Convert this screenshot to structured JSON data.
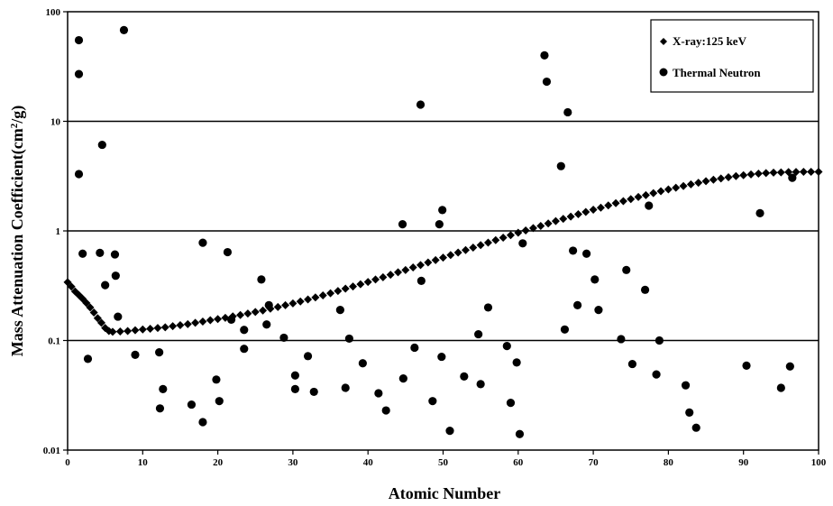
{
  "chart_data": {
    "type": "scatter",
    "xlabel": "Atomic Number",
    "ylabel_main": "Mass Attenuation Coefficient(cm",
    "ylabel_sup": "2",
    "ylabel_end": "/g)",
    "xlim": [
      0,
      100
    ],
    "ylim": [
      0.01,
      100
    ],
    "yscale": "log",
    "grid": "horizontal major lines",
    "legend_position": "top-right",
    "x_ticks": [
      "0",
      "10",
      "20",
      "30",
      "40",
      "50",
      "60",
      "70",
      "80",
      "90",
      "100"
    ],
    "y_ticks": [
      "0.01",
      "0.1",
      "1",
      "10",
      "100"
    ],
    "series": [
      {
        "name": "X-ray:125 keV",
        "marker": "diamond",
        "color": "#000000",
        "points": [
          [
            0,
            0.34
          ],
          [
            0.5,
            0.31
          ],
          [
            1,
            0.28
          ],
          [
            1.5,
            0.26
          ],
          [
            2,
            0.24
          ],
          [
            2.5,
            0.22
          ],
          [
            3,
            0.2
          ],
          [
            3.5,
            0.18
          ],
          [
            4,
            0.16
          ],
          [
            4.5,
            0.145
          ],
          [
            5,
            0.13
          ],
          [
            5.5,
            0.122
          ],
          [
            6,
            0.12
          ],
          [
            7,
            0.121
          ],
          [
            8,
            0.122
          ],
          [
            9,
            0.124
          ],
          [
            10,
            0.126
          ],
          [
            11,
            0.128
          ],
          [
            12,
            0.13
          ],
          [
            13,
            0.132
          ],
          [
            14,
            0.135
          ],
          [
            15,
            0.138
          ],
          [
            16,
            0.141
          ],
          [
            17,
            0.145
          ],
          [
            18,
            0.149
          ],
          [
            19,
            0.153
          ],
          [
            20,
            0.157
          ],
          [
            21,
            0.161
          ],
          [
            22,
            0.166
          ],
          [
            23,
            0.171
          ],
          [
            24,
            0.176
          ],
          [
            25,
            0.182
          ],
          [
            26,
            0.188
          ],
          [
            27,
            0.195
          ],
          [
            28,
            0.202
          ],
          [
            29,
            0.21
          ],
          [
            30,
            0.218
          ],
          [
            31,
            0.227
          ],
          [
            32,
            0.237
          ],
          [
            33,
            0.247
          ],
          [
            34,
            0.258
          ],
          [
            35,
            0.27
          ],
          [
            36,
            0.283
          ],
          [
            37,
            0.297
          ],
          [
            38,
            0.311
          ],
          [
            39,
            0.326
          ],
          [
            40,
            0.342
          ],
          [
            41,
            0.36
          ],
          [
            42,
            0.378
          ],
          [
            43,
            0.398
          ],
          [
            44,
            0.419
          ],
          [
            45,
            0.44
          ],
          [
            46,
            0.464
          ],
          [
            47,
            0.488
          ],
          [
            48,
            0.515
          ],
          [
            49,
            0.542
          ],
          [
            50,
            0.571
          ],
          [
            51,
            0.602
          ],
          [
            52,
            0.634
          ],
          [
            53,
            0.668
          ],
          [
            54,
            0.704
          ],
          [
            55,
            0.742
          ],
          [
            56,
            0.782
          ],
          [
            57,
            0.824
          ],
          [
            58,
            0.868
          ],
          [
            59,
            0.914
          ],
          [
            60,
            0.962
          ],
          [
            61,
            1.01
          ],
          [
            62,
            1.06
          ],
          [
            63,
            1.11
          ],
          [
            64,
            1.17
          ],
          [
            65,
            1.23
          ],
          [
            66,
            1.29
          ],
          [
            67,
            1.35
          ],
          [
            68,
            1.42
          ],
          [
            69,
            1.49
          ],
          [
            70,
            1.56
          ],
          [
            71,
            1.63
          ],
          [
            72,
            1.71
          ],
          [
            73,
            1.79
          ],
          [
            74,
            1.87
          ],
          [
            75,
            1.95
          ],
          [
            76,
            2.04
          ],
          [
            77,
            2.12
          ],
          [
            78,
            2.21
          ],
          [
            79,
            2.3
          ],
          [
            80,
            2.39
          ],
          [
            81,
            2.48
          ],
          [
            82,
            2.57
          ],
          [
            83,
            2.66
          ],
          [
            84,
            2.75
          ],
          [
            85,
            2.84
          ],
          [
            86,
            2.93
          ],
          [
            87,
            3.01
          ],
          [
            88,
            3.09
          ],
          [
            89,
            3.16
          ],
          [
            90,
            3.22
          ],
          [
            91,
            3.28
          ],
          [
            92,
            3.33
          ],
          [
            93,
            3.37
          ],
          [
            94,
            3.4
          ],
          [
            95,
            3.42
          ],
          [
            96,
            3.44
          ],
          [
            97,
            3.45
          ],
          [
            98,
            3.46
          ],
          [
            99,
            3.46
          ],
          [
            100,
            3.46
          ]
        ]
      },
      {
        "name": "Thermal Neutron",
        "marker": "circle",
        "color": "#000000",
        "points": [
          [
            1.5,
            55
          ],
          [
            1.5,
            27
          ],
          [
            1.5,
            3.3
          ],
          [
            2,
            0.62
          ],
          [
            2.7,
            0.068
          ],
          [
            4.3,
            0.63
          ],
          [
            4.6,
            6.1
          ],
          [
            5,
            0.32
          ],
          [
            6.3,
            0.61
          ],
          [
            6.4,
            0.39
          ],
          [
            6.7,
            0.165
          ],
          [
            7.5,
            68
          ],
          [
            9,
            0.074
          ],
          [
            12.2,
            0.078
          ],
          [
            12.3,
            0.024
          ],
          [
            12.7,
            0.036
          ],
          [
            16.5,
            0.026
          ],
          [
            18,
            0.78
          ],
          [
            18,
            0.018
          ],
          [
            19.8,
            0.044
          ],
          [
            20.2,
            0.028
          ],
          [
            21.3,
            0.64
          ],
          [
            21.8,
            0.155
          ],
          [
            23.5,
            0.084
          ],
          [
            23.5,
            0.125
          ],
          [
            25.8,
            0.36
          ],
          [
            26.5,
            0.14
          ],
          [
            26.8,
            0.21
          ],
          [
            28.8,
            0.106
          ],
          [
            30.3,
            0.048
          ],
          [
            30.3,
            0.036
          ],
          [
            32,
            0.072
          ],
          [
            32.8,
            0.034
          ],
          [
            36.3,
            0.19
          ],
          [
            37,
            0.037
          ],
          [
            37.5,
            0.104
          ],
          [
            39.3,
            0.062
          ],
          [
            41.4,
            0.033
          ],
          [
            42.4,
            0.023
          ],
          [
            44.6,
            1.15
          ],
          [
            44.7,
            0.045
          ],
          [
            46.2,
            0.086
          ],
          [
            47,
            14.2
          ],
          [
            47.1,
            0.35
          ],
          [
            48.6,
            0.028
          ],
          [
            49.5,
            1.15
          ],
          [
            49.8,
            0.071
          ],
          [
            49.9,
            1.55
          ],
          [
            50.9,
            0.015
          ],
          [
            52.8,
            0.047
          ],
          [
            54.7,
            0.114
          ],
          [
            55,
            0.04
          ],
          [
            56,
            0.2
          ],
          [
            58.5,
            0.089
          ],
          [
            59,
            0.027
          ],
          [
            59.8,
            0.063
          ],
          [
            60.2,
            0.014
          ],
          [
            60.6,
            0.77
          ],
          [
            63.5,
            40
          ],
          [
            63.8,
            23
          ],
          [
            65.7,
            3.9
          ],
          [
            66.2,
            0.126
          ],
          [
            66.6,
            12.1
          ],
          [
            67.3,
            0.66
          ],
          [
            67.9,
            0.21
          ],
          [
            69.1,
            0.62
          ],
          [
            70.2,
            0.36
          ],
          [
            70.7,
            0.19
          ],
          [
            73.7,
            0.103
          ],
          [
            74.4,
            0.44
          ],
          [
            75.2,
            0.061
          ],
          [
            76.9,
            0.29
          ],
          [
            77.4,
            1.7
          ],
          [
            78.4,
            0.049
          ],
          [
            78.8,
            0.1
          ],
          [
            82.3,
            0.039
          ],
          [
            82.8,
            0.022
          ],
          [
            83.7,
            0.016
          ],
          [
            90.4,
            0.059
          ],
          [
            92.2,
            1.45
          ],
          [
            95,
            0.037
          ],
          [
            96.2,
            0.058
          ],
          [
            96.5,
            3.05
          ]
        ]
      }
    ]
  }
}
